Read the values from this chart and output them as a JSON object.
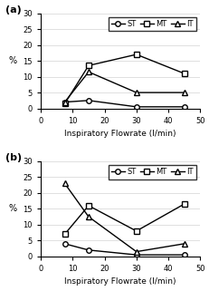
{
  "x": [
    7.5,
    15,
    30,
    45
  ],
  "panel_a": {
    "ST": [
      2,
      2.5,
      0.5,
      0.5
    ],
    "MT": [
      1.5,
      13.5,
      17,
      11
    ],
    "IT": [
      2,
      11.5,
      5,
      5
    ]
  },
  "panel_b": {
    "ST": [
      4,
      2,
      0.5,
      0.5
    ],
    "MT": [
      7,
      16,
      8,
      16.5
    ],
    "IT": [
      23,
      12.5,
      1.5,
      4
    ]
  },
  "xlabel": "Inspiratory Flowrate (l/min)",
  "ylabel": "%",
  "xlim": [
    0,
    50
  ],
  "ylim": [
    0,
    30
  ],
  "yticks": [
    0,
    5,
    10,
    15,
    20,
    25,
    30
  ],
  "xticks": [
    0,
    10,
    20,
    30,
    40,
    50
  ],
  "legend_labels": [
    "ST",
    "MT",
    "IT"
  ],
  "markers": [
    "o",
    "s",
    "^"
  ],
  "color": "black",
  "label_a": "(a)",
  "label_b": "(b)"
}
